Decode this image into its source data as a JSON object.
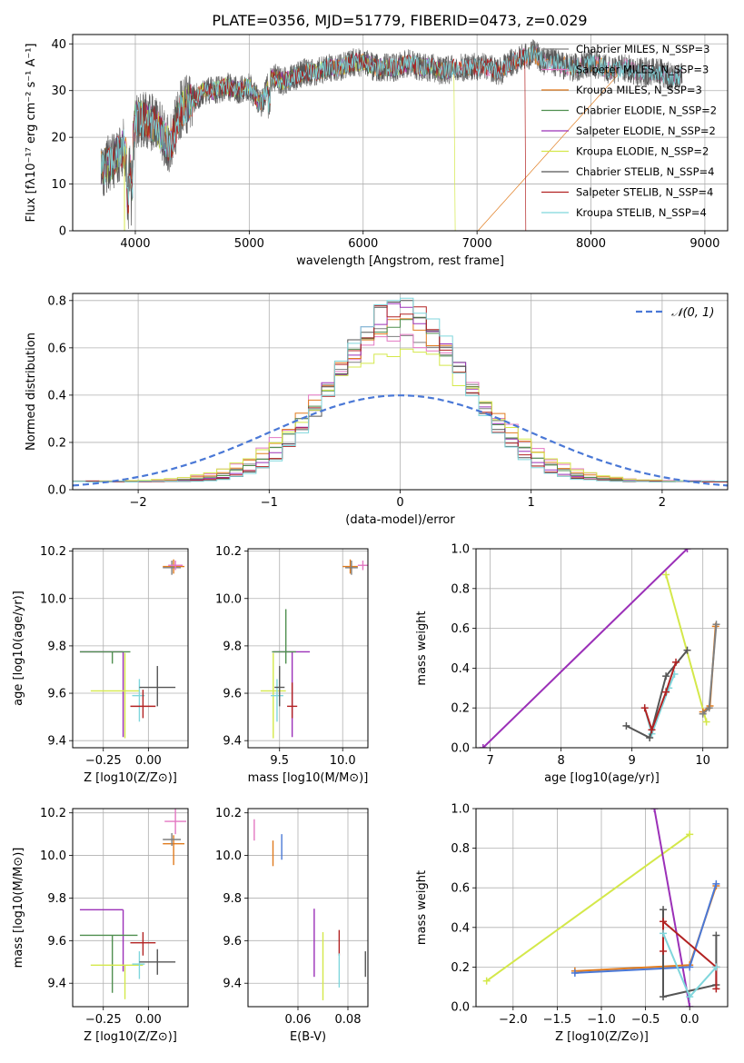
{
  "figure_title": "PLATE=0356, MJD=51779, FIBERID=0473, z=0.029",
  "colors": {
    "Chabrier MILES": "#7f7f7f",
    "Salpeter MILES": "#e377c2",
    "Kroupa MILES": "#e07b1e",
    "Chabrier ELODIE": "#4f8f4f",
    "Salpeter ELODIE": "#9b30b8",
    "Kroupa ELODIE": "#d4e84a",
    "Chabrier STELIB": "#555555",
    "Salpeter STELIB": "#b22222",
    "Kroupa STELIB": "#7fd6dc",
    "blue": "#4a78d6"
  },
  "chart_data": [
    {
      "id": "spectrum",
      "type": "line",
      "title": "PLATE=0356, MJD=51779, FIBERID=0473, z=0.029",
      "xlabel": "wavelength [Angstrom, rest frame]",
      "ylabel": "Flux [fλ10⁻¹⁷ erg cm⁻² s⁻¹ A⁻¹]",
      "xlim": [
        3450,
        9200
      ],
      "ylim": [
        0,
        42
      ],
      "xticks": [
        4000,
        5000,
        6000,
        7000,
        8000,
        9000
      ],
      "yticks": [
        0,
        10,
        20,
        30,
        40
      ],
      "legend": "upper-right",
      "x": [
        3700,
        3800,
        3900,
        3950,
        4000,
        4100,
        4200,
        4300,
        4400,
        4500,
        4600,
        4700,
        4800,
        4900,
        5000,
        5100,
        5200,
        5300,
        5400,
        5500,
        5600,
        5700,
        5800,
        5900,
        6000,
        6100,
        6200,
        6300,
        6400,
        6500,
        6600,
        6700,
        6800,
        6900,
        7000,
        7100,
        7200,
        7300,
        7400,
        7500,
        7600,
        7700,
        7800,
        7900,
        8000,
        8100,
        8200,
        8300,
        8400,
        8500,
        8600,
        8700,
        8800
      ],
      "y": [
        13,
        15,
        18,
        12,
        24,
        24,
        22,
        18,
        26,
        28,
        30,
        30,
        31,
        30,
        31,
        27,
        33,
        32,
        33,
        34,
        34,
        35,
        35,
        36,
        36,
        35,
        35,
        35,
        36,
        35,
        35,
        34,
        35,
        35,
        35,
        35,
        34,
        36,
        37,
        38,
        36,
        36,
        35,
        35,
        36,
        35,
        34,
        35,
        34,
        34,
        34,
        33,
        33
      ],
      "series": [
        {
          "name": "Chabrier MILES, N_SSP=3",
          "color_key": "Chabrier MILES"
        },
        {
          "name": "Salpeter MILES, N_SSP=3",
          "color_key": "Salpeter MILES"
        },
        {
          "name": "Kroupa MILES, N_SSP=3",
          "color_key": "Kroupa MILES",
          "drop_at": 7000,
          "cutoff": 8230
        },
        {
          "name": "Chabrier ELODIE, N_SSP=2",
          "color_key": "Chabrier ELODIE",
          "cutoff": 6800
        },
        {
          "name": "Salpeter ELODIE, N_SSP=2",
          "color_key": "Salpeter ELODIE",
          "cutoff": 6800
        },
        {
          "name": "Kroupa ELODIE, N_SSP=2",
          "color_key": "Kroupa ELODIE",
          "drop_at": 6800,
          "cutoff": 6800
        },
        {
          "name": "Chabrier STELIB, N_SSP=4",
          "color_key": "Chabrier STELIB"
        },
        {
          "name": "Salpeter STELIB, N_SSP=4",
          "color_key": "Salpeter STELIB",
          "drop_at": 7420,
          "cutoff": 7420
        },
        {
          "name": "Kroupa STELIB, N_SSP=4",
          "color_key": "Kroupa STELIB"
        }
      ]
    },
    {
      "id": "residuals",
      "type": "histogram",
      "xlabel": "(data-model)/error",
      "ylabel": "Normed distribution",
      "xlim": [
        -2.5,
        2.5
      ],
      "ylim": [
        0,
        0.83
      ],
      "xticks": [
        -2,
        -1,
        0,
        1,
        2
      ],
      "yticks": [
        0.0,
        0.2,
        0.4,
        0.6,
        0.8
      ],
      "legend": "upper-right",
      "gauss_label": "𝒩(0, 1)",
      "gauss_color_key": "blue",
      "bin_width": 0.1,
      "series": [
        {
          "color_key": "Chabrier MILES",
          "sigma": 0.55,
          "peak": 0.64
        },
        {
          "color_key": "Salpeter MILES",
          "sigma": 0.6,
          "peak": 0.62
        },
        {
          "color_key": "Kroupa MILES",
          "sigma": 0.57,
          "peak": 0.66
        },
        {
          "color_key": "Chabrier ELODIE",
          "sigma": 0.53,
          "peak": 0.68
        },
        {
          "color_key": "Salpeter ELODIE",
          "sigma": 0.5,
          "peak": 0.72
        },
        {
          "color_key": "Kroupa ELODIE",
          "sigma": 0.62,
          "peak": 0.55
        },
        {
          "color_key": "Chabrier STELIB",
          "sigma": 0.47,
          "peak": 0.76
        },
        {
          "color_key": "Salpeter STELIB",
          "sigma": 0.48,
          "peak": 0.74
        },
        {
          "color_key": "Kroupa STELIB",
          "sigma": 0.46,
          "peak": 0.79
        }
      ]
    },
    {
      "id": "age-vs-Z",
      "type": "errorbar",
      "xlabel": "Z [log10(Z/Z⊙)]",
      "ylabel": "age  [log10(age/yr)]",
      "xlim": [
        -0.42,
        0.22
      ],
      "ylim": [
        9.37,
        10.21
      ],
      "xticks": [
        -0.25,
        0.0
      ],
      "xticklabels": [
        "−0.25",
        "0.00"
      ],
      "yticks": [
        9.4,
        9.6,
        9.8,
        10.0,
        10.2
      ],
      "points": [
        {
          "color_key": "Salpeter ELODIE",
          "x": -0.14,
          "xerr": [
            0.24,
            0.0
          ],
          "y": 9.775,
          "yerr": [
            0.36,
            0.0
          ]
        },
        {
          "color_key": "Chabrier ELODIE",
          "x": -0.2,
          "xerr": [
            0.18,
            0.1
          ],
          "y": 9.775,
          "yerr": [
            0.05,
            0.0
          ]
        },
        {
          "color_key": "Kroupa ELODIE",
          "x": -0.13,
          "xerr": [
            0.19,
            0.08
          ],
          "y": 9.61,
          "yerr": [
            0.2,
            0.16
          ]
        },
        {
          "color_key": "Kroupa STELIB",
          "x": -0.05,
          "xerr": [
            0.04,
            0.03
          ],
          "y": 9.59,
          "yerr": [
            0.11,
            0.07
          ]
        },
        {
          "color_key": "Salpeter STELIB",
          "x": -0.03,
          "xerr": [
            0.07,
            0.07
          ],
          "y": 9.545,
          "yerr": [
            0.05,
            0.07
          ]
        },
        {
          "color_key": "Chabrier STELIB",
          "x": 0.05,
          "xerr": [
            0.1,
            0.1
          ],
          "y": 9.625,
          "yerr": [
            0.08,
            0.09
          ]
        },
        {
          "color_key": "Kroupa MILES",
          "x": 0.14,
          "xerr": [
            0.06,
            0.06
          ],
          "y": 10.135,
          "yerr": [
            0.03,
            0.03
          ]
        },
        {
          "color_key": "Chabrier MILES",
          "x": 0.13,
          "xerr": [
            0.05,
            0.05
          ],
          "y": 10.13,
          "yerr": [
            0.03,
            0.03
          ]
        },
        {
          "color_key": "Salpeter MILES",
          "x": 0.15,
          "xerr": [
            0.04,
            0.04
          ],
          "y": 10.14,
          "yerr": [
            0.02,
            0.02
          ]
        }
      ]
    },
    {
      "id": "age-vs-mass",
      "type": "errorbar",
      "xlabel": "mass [log10(M/M⊙)]",
      "ylabel": "",
      "xlim": [
        9.25,
        10.2
      ],
      "ylim": [
        9.37,
        10.21
      ],
      "xticks": [
        9.5,
        10.0
      ],
      "xticklabels": [
        "9.5",
        "10.0"
      ],
      "yticks": [
        9.4,
        9.6,
        9.8,
        10.0,
        10.2
      ],
      "points": [
        {
          "color_key": "Salpeter ELODIE",
          "x": 9.6,
          "xerr": [
            0.15,
            0.14
          ],
          "y": 9.775,
          "yerr": [
            0.36,
            0.0
          ]
        },
        {
          "color_key": "Chabrier ELODIE",
          "x": 9.55,
          "xerr": [
            0.11,
            0.08
          ],
          "y": 9.775,
          "yerr": [
            0.05,
            0.18
          ]
        },
        {
          "color_key": "Kroupa ELODIE",
          "x": 9.45,
          "xerr": [
            0.1,
            0.1
          ],
          "y": 9.61,
          "yerr": [
            0.2,
            0.16
          ]
        },
        {
          "color_key": "Kroupa STELIB",
          "x": 9.48,
          "xerr": [
            0.05,
            0.05
          ],
          "y": 9.59,
          "yerr": [
            0.11,
            0.07
          ]
        },
        {
          "color_key": "Salpeter STELIB",
          "x": 9.6,
          "xerr": [
            0.04,
            0.04
          ],
          "y": 9.545,
          "yerr": [
            0.05,
            0.1
          ]
        },
        {
          "color_key": "Chabrier STELIB",
          "x": 9.5,
          "xerr": [
            0.04,
            0.04
          ],
          "y": 9.625,
          "yerr": [
            0.08,
            0.09
          ]
        },
        {
          "color_key": "Kroupa MILES",
          "x": 10.06,
          "xerr": [
            0.06,
            0.06
          ],
          "y": 10.135,
          "yerr": [
            0.03,
            0.03
          ]
        },
        {
          "color_key": "Chabrier MILES",
          "x": 10.07,
          "xerr": [
            0.05,
            0.05
          ],
          "y": 10.13,
          "yerr": [
            0.03,
            0.03
          ]
        },
        {
          "color_key": "Salpeter MILES",
          "x": 10.16,
          "xerr": [
            0.04,
            0.04
          ],
          "y": 10.14,
          "yerr": [
            0.02,
            0.02
          ]
        }
      ]
    },
    {
      "id": "mass-vs-Z",
      "type": "errorbar",
      "xlabel": "Z [log10(Z/Z⊙)]",
      "ylabel": "mass [log10(M/M⊙)]",
      "xlim": [
        -0.42,
        0.22
      ],
      "ylim": [
        9.29,
        10.22
      ],
      "xticks": [
        -0.25,
        0.0
      ],
      "xticklabels": [
        "−0.25",
        "0.00"
      ],
      "yticks": [
        9.4,
        9.6,
        9.8,
        10.0,
        10.2
      ],
      "points": [
        {
          "color_key": "Salpeter ELODIE",
          "x": -0.14,
          "xerr": [
            0.24,
            0.0
          ],
          "y": 9.745,
          "yerr": [
            0.29,
            0.0
          ]
        },
        {
          "color_key": "Chabrier ELODIE",
          "x": -0.2,
          "xerr": [
            0.18,
            0.14
          ],
          "y": 9.625,
          "yerr": [
            0.27,
            0.0
          ]
        },
        {
          "color_key": "Kroupa ELODIE",
          "x": -0.13,
          "xerr": [
            0.19,
            0.1
          ],
          "y": 9.485,
          "yerr": [
            0.16,
            0.0
          ]
        },
        {
          "color_key": "Kroupa STELIB",
          "x": -0.05,
          "xerr": [
            0.04,
            0.03
          ],
          "y": 9.49,
          "yerr": [
            0.07,
            0.06
          ]
        },
        {
          "color_key": "Salpeter STELIB",
          "x": -0.03,
          "xerr": [
            0.07,
            0.07
          ],
          "y": 9.59,
          "yerr": [
            0.06,
            0.05
          ]
        },
        {
          "color_key": "Chabrier STELIB",
          "x": 0.05,
          "xerr": [
            0.1,
            0.1
          ],
          "y": 9.5,
          "yerr": [
            0.06,
            0.06
          ]
        },
        {
          "color_key": "Kroupa MILES",
          "x": 0.14,
          "xerr": [
            0.06,
            0.06
          ],
          "y": 10.055,
          "yerr": [
            0.1,
            0.04
          ]
        },
        {
          "color_key": "Chabrier MILES",
          "x": 0.13,
          "xerr": [
            0.05,
            0.05
          ],
          "y": 10.075,
          "yerr": [
            0.03,
            0.03
          ]
        },
        {
          "color_key": "Salpeter MILES",
          "x": 0.15,
          "xerr": [
            0.06,
            0.06
          ],
          "y": 10.16,
          "yerr": [
            0.06,
            0.06
          ]
        }
      ]
    },
    {
      "id": "mass-vs-ebv",
      "type": "errorbar",
      "xlabel": "E(B-V)",
      "ylabel": "",
      "xlim": [
        0.04,
        0.088
      ],
      "ylim": [
        9.29,
        10.22
      ],
      "xticks": [
        0.06,
        0.08
      ],
      "xticklabels": [
        "0.06",
        "0.08"
      ],
      "yticks": [
        9.4,
        9.6,
        9.8,
        10.0,
        10.2
      ],
      "points": [
        {
          "color_key": "Salpeter MILES",
          "x": 0.0425,
          "xerr": [
            0,
            0
          ],
          "y": 10.12,
          "yerr": [
            0.05,
            0.05
          ]
        },
        {
          "color_key": "Kroupa MILES",
          "x": 0.05,
          "xerr": [
            0,
            0
          ],
          "y": 10.01,
          "yerr": [
            0.06,
            0.06
          ]
        },
        {
          "color_key": "blue",
          "x": 0.0535,
          "xerr": [
            0,
            0
          ],
          "y": 10.04,
          "yerr": [
            0.06,
            0.06
          ]
        },
        {
          "color_key": "Salpeter ELODIE",
          "x": 0.0665,
          "xerr": [
            0,
            0
          ],
          "y": 9.59,
          "yerr": [
            0.16,
            0.16
          ]
        },
        {
          "color_key": "Kroupa ELODIE",
          "x": 0.07,
          "xerr": [
            0,
            0
          ],
          "y": 9.48,
          "yerr": [
            0.16,
            0.16
          ]
        },
        {
          "color_key": "Salpeter STELIB",
          "x": 0.0765,
          "xerr": [
            0,
            0
          ],
          "y": 9.59,
          "yerr": [
            0.06,
            0.06
          ]
        },
        {
          "color_key": "Kroupa STELIB",
          "x": 0.0765,
          "xerr": [
            0,
            0
          ],
          "y": 9.46,
          "yerr": [
            0.08,
            0.08
          ]
        },
        {
          "color_key": "Chabrier STELIB",
          "x": 0.087,
          "xerr": [
            0,
            0
          ],
          "y": 9.49,
          "yerr": [
            0.06,
            0.06
          ]
        }
      ]
    },
    {
      "id": "massweight-vs-age",
      "type": "line",
      "xlabel": "age  [log10(age/yr)]",
      "ylabel": "mass weight",
      "xlim": [
        6.8,
        10.35
      ],
      "ylim": [
        0,
        1.0
      ],
      "xticks": [
        7,
        8,
        9,
        10
      ],
      "yticks": [
        0.0,
        0.2,
        0.4,
        0.6,
        0.8,
        1.0
      ],
      "series": [
        {
          "color_key": "Salpeter ELODIE",
          "x": [
            6.9,
            9.78
          ],
          "y": [
            0.0,
            1.0
          ]
        },
        {
          "color_key": "Kroupa ELODIE",
          "x": [
            9.48,
            10.05
          ],
          "y": [
            0.87,
            0.13
          ]
        },
        {
          "color_key": "Kroupa STELIB",
          "x": [
            9.18,
            9.28,
            9.52,
            9.6
          ],
          "y": [
            0.2,
            0.07,
            0.3,
            0.37
          ]
        },
        {
          "color_key": "Chabrier STELIB",
          "x": [
            8.92,
            9.25,
            9.48,
            9.78
          ],
          "y": [
            0.11,
            0.05,
            0.36,
            0.49
          ]
        },
        {
          "color_key": "Salpeter STELIB",
          "x": [
            9.18,
            9.28,
            9.48,
            9.62
          ],
          "y": [
            0.2,
            0.09,
            0.28,
            0.43
          ]
        },
        {
          "color_key": "Kroupa MILES",
          "x": [
            10.0,
            10.1,
            10.18
          ],
          "y": [
            0.18,
            0.21,
            0.61
          ]
        },
        {
          "color_key": "Chabrier MILES",
          "x": [
            10.0,
            10.09,
            10.19
          ],
          "y": [
            0.17,
            0.2,
            0.62
          ]
        }
      ]
    },
    {
      "id": "massweight-vs-Z",
      "type": "line",
      "xlabel": "Z [log10(Z/Z⊙)]",
      "ylabel": "mass weight",
      "xlim": [
        -2.42,
        0.43
      ],
      "ylim": [
        0,
        1.0
      ],
      "xticks": [
        -2.0,
        -1.5,
        -1.0,
        -0.5,
        0.0
      ],
      "xticklabels": [
        "−2.0",
        "−1.5",
        "−1.0",
        "−0.5",
        "0.0"
      ],
      "yticks": [
        0.0,
        0.2,
        0.4,
        0.6,
        0.8,
        1.0
      ],
      "series": [
        {
          "color_key": "Kroupa ELODIE",
          "x": [
            -2.3,
            0.0
          ],
          "y": [
            0.13,
            0.87
          ]
        },
        {
          "color_key": "Salpeter ELODIE",
          "x": [
            -0.4,
            0.0
          ],
          "y": [
            1.0,
            0.0
          ]
        },
        {
          "color_key": "Kroupa MILES",
          "x": [
            -1.3,
            0.0,
            0.3
          ],
          "y": [
            0.18,
            0.21,
            0.61
          ]
        },
        {
          "color_key": "blue",
          "x": [
            -1.3,
            0.0,
            0.3
          ],
          "y": [
            0.17,
            0.2,
            0.62
          ]
        },
        {
          "color_key": "Chabrier STELIB",
          "x": [
            -0.3,
            -0.3,
            0.3,
            0.3
          ],
          "y": [
            0.49,
            0.05,
            0.11,
            0.36
          ]
        },
        {
          "color_key": "Salpeter STELIB",
          "x": [
            -0.3,
            -0.3,
            0.3,
            0.3
          ],
          "y": [
            0.28,
            0.43,
            0.2,
            0.09
          ]
        },
        {
          "color_key": "Kroupa STELIB",
          "x": [
            -0.3,
            0.0,
            0.3
          ],
          "y": [
            0.37,
            0.05,
            0.2
          ]
        }
      ]
    }
  ]
}
